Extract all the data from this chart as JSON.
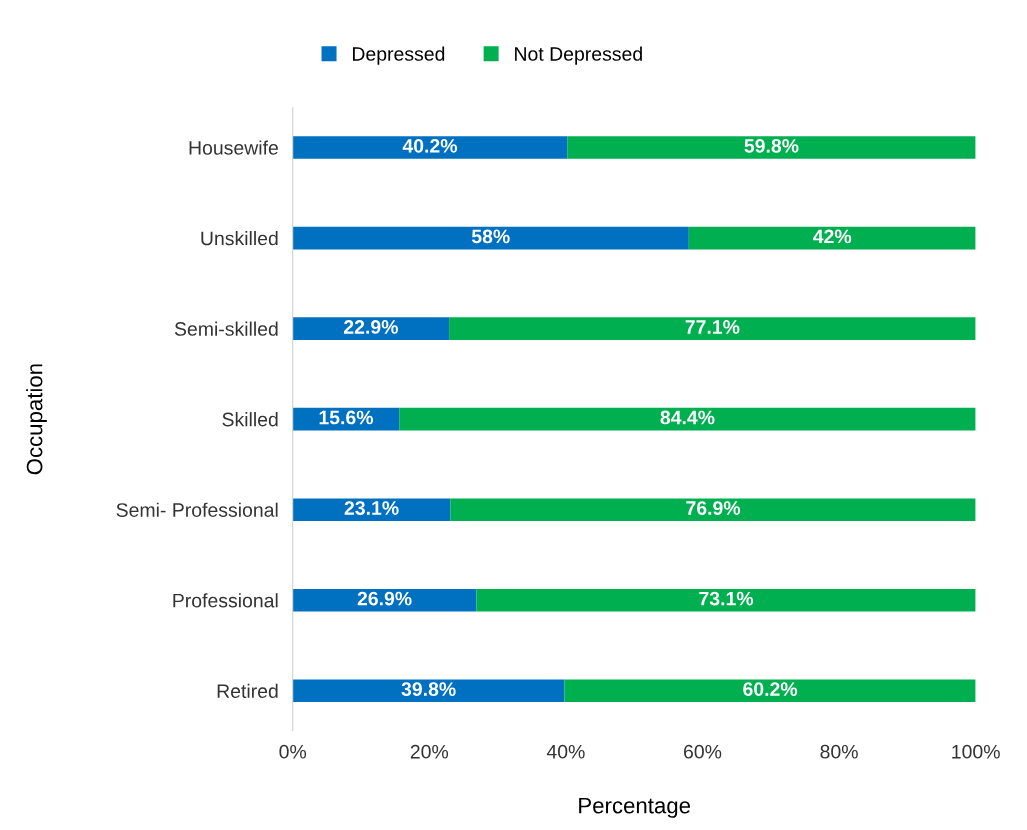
{
  "chart_data": {
    "type": "bar",
    "orientation": "horizontal",
    "stacked": true,
    "xlabel": "Percentage",
    "ylabel": "Occupation",
    "categories": [
      "Housewife",
      "Unskilled",
      "Semi-skilled",
      "Skilled",
      "Semi- Professional",
      "Professional",
      "Retired"
    ],
    "series": [
      {
        "name": "Depressed",
        "color": "#0070c0",
        "values": [
          40.2,
          58,
          22.9,
          15.6,
          23.1,
          26.9,
          39.8
        ],
        "value_labels": [
          "40.2%",
          "58%",
          "22.9%",
          "15.6%",
          "23.1%",
          "26.9%",
          "39.8%"
        ]
      },
      {
        "name": "Not Depressed",
        "color": "#00b050",
        "values": [
          59.8,
          42,
          77.1,
          84.4,
          76.9,
          73.1,
          60.2
        ],
        "value_labels": [
          "59.8%",
          "42%",
          "77.1%",
          "84.4%",
          "76.9%",
          "73.1%",
          "60.2%"
        ]
      }
    ],
    "xlim": [
      0,
      100
    ],
    "xticks": [
      {
        "value": 0,
        "label": "0%"
      },
      {
        "value": 20,
        "label": "20%"
      },
      {
        "value": 40,
        "label": "40%"
      },
      {
        "value": 60,
        "label": "60%"
      },
      {
        "value": 80,
        "label": "80%"
      },
      {
        "value": 100,
        "label": "100%"
      }
    ],
    "grid": false,
    "legend": "top"
  }
}
